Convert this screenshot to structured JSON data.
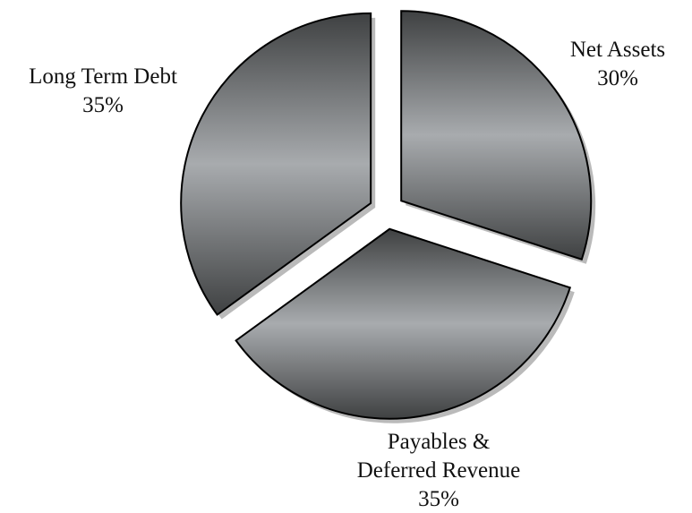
{
  "chart_data": {
    "type": "pie",
    "categories": [
      "Net Assets",
      "Payables & Deferred Revenue",
      "Long Term Debt"
    ],
    "values": [
      30,
      35,
      35
    ],
    "value_labels": [
      "30%",
      "35%",
      "35%"
    ],
    "color": "#a8abae"
  }
}
